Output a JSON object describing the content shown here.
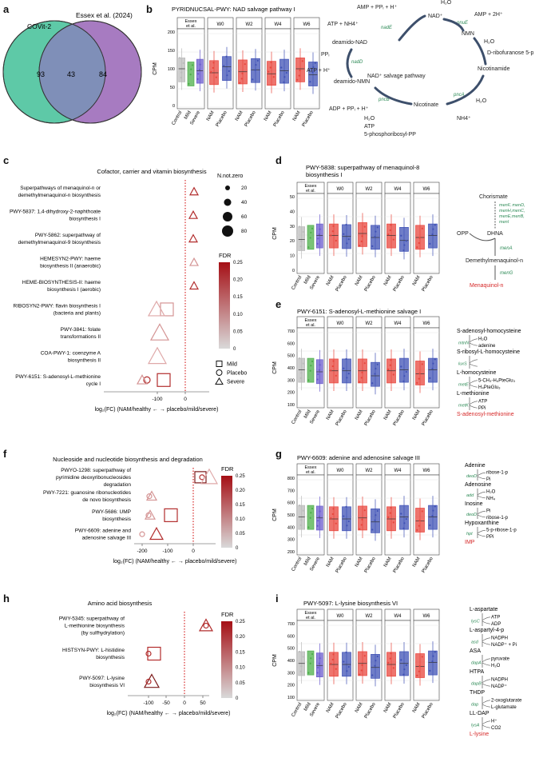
{
  "panels": {
    "a": "a",
    "b": "b",
    "c": "c",
    "d": "d",
    "e": "e",
    "f": "f",
    "g": "g",
    "h": "h",
    "i": "i"
  },
  "venn": {
    "left_label": "COVit-2",
    "right_label": "Essex et al. (2024)",
    "left_only": "93",
    "overlap": "43",
    "right_only": "84",
    "left_color": "#5ec9a7",
    "right_color": "#a77bc1"
  },
  "groups": {
    "essex": "Essex et al.",
    "w0": "W0",
    "w2": "W2",
    "w4": "W4",
    "w6": "W6",
    "control": "Control",
    "mild": "Mild",
    "severe": "Severe",
    "nam": "NAM",
    "placebo": "Placebo"
  },
  "box_colors": {
    "control": "#4daf4a",
    "severe": "#6a5acd",
    "nam": "#e8453c",
    "placebo": "#3f51b5"
  },
  "cpm_label": "CPM",
  "box_b": {
    "title": "PYRIDNUCSAL-PWY: NAD salvage pathway I",
    "ticks": [
      "0",
      "50",
      "100",
      "150",
      "200"
    ]
  },
  "box_d": {
    "title_line1": "PWY-5838: superpathway of menaquinol-8",
    "title_line2": "biosynthesis I",
    "ticks": [
      "0",
      "10",
      "20",
      "30",
      "40",
      "50"
    ]
  },
  "box_e": {
    "title": "PWY-6151: S-adenosyl-L-methionine salvage I",
    "ticks": [
      "100",
      "200",
      "300",
      "400",
      "500",
      "600",
      "700"
    ]
  },
  "box_g": {
    "title": "PWY-6609: adenine and adenosine salvage III",
    "ticks": [
      "200",
      "300",
      "400",
      "500",
      "600",
      "700",
      "800"
    ]
  },
  "box_i": {
    "title": "PWY-5097: L-lysine biosynthesis VI",
    "ticks": [
      "100",
      "200",
      "300",
      "400",
      "500",
      "600",
      "700"
    ]
  },
  "nad_path": {
    "center": "NAD⁺ salvage pathway",
    "nodes": {
      "nad": "NAD⁺",
      "nmn": "NMN",
      "nicotinamide": "Nicotinamide",
      "nicotinate": "Nicotinate",
      "deamido_nmn": "deamido-NMN",
      "deamido_nad": "deamido-NAD",
      "prpp": "5-phosphoribosyl-PP"
    },
    "labels": {
      "h2o_1": "H₂O",
      "amp_2h": "AMP + 2H⁺",
      "amp_ppi": "AMP + PPᵢ + H⁺",
      "atp_nh4": "ATP + NH4⁺",
      "h2o_2": "H₂O",
      "ribofuranose": "D-ribofuranose 5-p",
      "ppi": "PPᵢ",
      "atp_h": "ATP + H⁺",
      "h2o_3": "H₂O",
      "nh4": "NH4⁺",
      "adp": "ADP + PPᵢ + H⁺",
      "h2o_4": "H₂O",
      "atp": "ATP"
    },
    "enzymes": {
      "nadE": "nadE",
      "pnuE": "pnuE",
      "nadD": "nadD",
      "pncB": "pncB",
      "pncA": "pncA"
    }
  },
  "path_d": {
    "chorismate": "Chorismate",
    "enz1": [
      "menF, menD,",
      "menH,menC,",
      "menE,menB,",
      "menI"
    ],
    "opp": "OPP",
    "dhna": "DHNA",
    "menA": "menA",
    "demethyl": "Demethylmenaquinol-n",
    "menG": "menG",
    "product": "Menaquinol-n"
  },
  "path_e": {
    "n1": "S-adenosyl-homocysteine",
    "e1": "mtnN",
    "s1a": "H₂O",
    "s1b": "adenine",
    "n2": "S-ribosyl-L-homocysteine",
    "e2": "luxS",
    "n3": "L-homocysteine",
    "e3": "metE",
    "s3a": "5-CH₃-H₄PteGlu₃",
    "s3b": "H₄PteGlu₃",
    "n4": "L-methionine",
    "e4": "metK",
    "s4a": "ATP",
    "s4b": "PPi",
    "product": "S-adenosyl-methionine"
  },
  "path_g": {
    "n1": "Adenine",
    "e1": "deoD",
    "s1a": "ribose-1-p",
    "s1b": "Pi",
    "n2": "Adenosine",
    "e2": "add",
    "s2a": "H₂O",
    "s2b": "NH₄",
    "n3": "Inosine",
    "e3": "deoD",
    "s3a": "Pi",
    "s3b": "ribose-1-p",
    "n4": "Hypoxanthine",
    "e4": "hpt",
    "s4a": "5-p-ribose-1-p",
    "s4b": "PPi",
    "product": "IMP"
  },
  "path_i": {
    "n1": "L-aspartate",
    "e1": "lysC",
    "s1a": "ATP",
    "s1b": "ADP",
    "n2": "L-aspartyl-4-p",
    "e2": "asd",
    "s2a": "NADPH",
    "s2b": "NADP⁺ + Pi",
    "n3": "ASA",
    "e3": "dapA",
    "s3a": "pyruvate",
    "s3b": "H₂O",
    "n4": "HTPA",
    "e4": "dapB",
    "s4a": "NADPH",
    "s4b": "NADP⁺",
    "n5": "THDP",
    "e5": "dap",
    "s5a": "2-oxoglutarate",
    "s5b": "L-glutamate",
    "n6": "LL-DAP",
    "e6": "lysA",
    "s6a": "H⁺",
    "s6b": "CO2",
    "product": "L-lysine"
  },
  "pathway_plot_common": {
    "xlabel": "log₂(FC) (NAM/healthy ← → placebo/mild/severe)",
    "fdr_title": "FDR",
    "fdr_ticks": [
      "0",
      "0.05",
      "0.10",
      "0.15",
      "0.20",
      "0.25"
    ],
    "fdr_colors": [
      "#d9d9d9",
      "#a50f15"
    ]
  },
  "plot_c": {
    "title": "Cofactor, carrier and vitamin biosynthesis",
    "size_legend_title": "N.not.zero",
    "size_legend": [
      "20",
      "40",
      "60",
      "80"
    ],
    "shape_legend": [
      "Mild",
      "Placebo",
      "Severe"
    ],
    "xticks": [
      "-100",
      "0"
    ],
    "rows": [
      {
        "l1": "Superpathways of menaquinol-n or",
        "l2": "demethylmenaquinol-n biosynthesis"
      },
      {
        "l1": "PWY-5837: 1,4-dihydroxy-2-naphthoate",
        "l2": "biosynthesis I"
      },
      {
        "l1": "PWY-5862: superpathway of",
        "l2": "demethylmenaquinol-9 biosynthesis"
      },
      {
        "l1": "HEMESYN2-PWY: haeme",
        "l2": "biosynthesis II (anaerobic)"
      },
      {
        "l1": "HEME-BIOSYNTHESIS-II: haeme",
        "l2": "biosynthesis I (aerobic)"
      },
      {
        "l1": "RIBOSYN2-PWY: flavin biosynthesis I",
        "l2": "(bacteria and plants)"
      },
      {
        "l1": "PWY-3841: folate",
        "l2": "transformations II"
      },
      {
        "l1": "COA-PWY-1: coenzyme A",
        "l2": "biosynthesis II"
      },
      {
        "l1": "PWY-6151: S-adenosyl-L-methionine",
        "l2": "cycle I"
      }
    ]
  },
  "plot_f": {
    "title": "Nucleoside and nucleotide biosynthesis and degradation",
    "xticks": [
      "-200",
      "-100",
      "0"
    ],
    "rows": [
      {
        "l1": "PWYO-1298: superpathway of",
        "l2": "pyrimidine deoxyribonucleosides",
        "l3": "degradation"
      },
      {
        "l1": "PWY-7221: guanosine ribonucleotides",
        "l2": "de novo biosynthesis",
        "l3": ""
      },
      {
        "l1": "PWY-5686: UMP",
        "l2": "biosynthesis",
        "l3": ""
      },
      {
        "l1": "PWY-6609: adenine and",
        "l2": "adenosine salvage III",
        "l3": ""
      }
    ]
  },
  "plot_h": {
    "title": "Amino acid biosynthesis",
    "xticks": [
      "-100",
      "-50",
      "0",
      "50"
    ],
    "rows": [
      {
        "l1": "PWY-5345: superpathway of",
        "l2": "L-methionine biosynthesis",
        "l3": "(by sulfhydrylation)"
      },
      {
        "l1": "HISTSYN-PWY: L-histidine",
        "l2": "biosynthesis",
        "l3": ""
      },
      {
        "l1": "PWY-5097: L-lysine",
        "l2": "biosynthesis VI",
        "l3": ""
      }
    ]
  }
}
